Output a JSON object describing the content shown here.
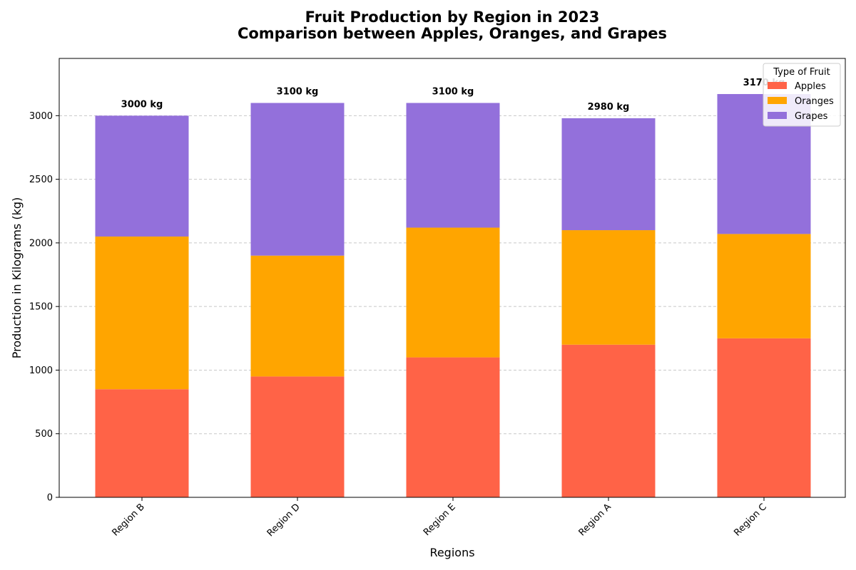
{
  "chart_data": {
    "type": "bar",
    "stacked": true,
    "title": "Fruit Production by Region in 2023",
    "subtitle": "Comparison between Apples, Oranges, and Grapes",
    "xlabel": "Regions",
    "ylabel": "Production in Kilograms (kg)",
    "ylim": [
      0,
      3450
    ],
    "yticks": [
      0,
      500,
      1000,
      1500,
      2000,
      2500,
      3000
    ],
    "grid": "y-dashed",
    "legend_title": "Type of Fruit",
    "legend_position": "top-right",
    "categories": [
      "Region B",
      "Region D",
      "Region E",
      "Region A",
      "Region C"
    ],
    "series": [
      {
        "name": "Apples",
        "color": "#FF6347",
        "values": [
          850,
          950,
          1100,
          1200,
          1250
        ]
      },
      {
        "name": "Oranges",
        "color": "#FFA500",
        "values": [
          1200,
          950,
          1020,
          900,
          820
        ]
      },
      {
        "name": "Grapes",
        "color": "#9370DB",
        "values": [
          950,
          1200,
          980,
          880,
          1100
        ]
      }
    ],
    "total_labels": [
      "3000 kg",
      "3100 kg",
      "3100 kg",
      "2980 kg",
      "3170 kg"
    ]
  }
}
